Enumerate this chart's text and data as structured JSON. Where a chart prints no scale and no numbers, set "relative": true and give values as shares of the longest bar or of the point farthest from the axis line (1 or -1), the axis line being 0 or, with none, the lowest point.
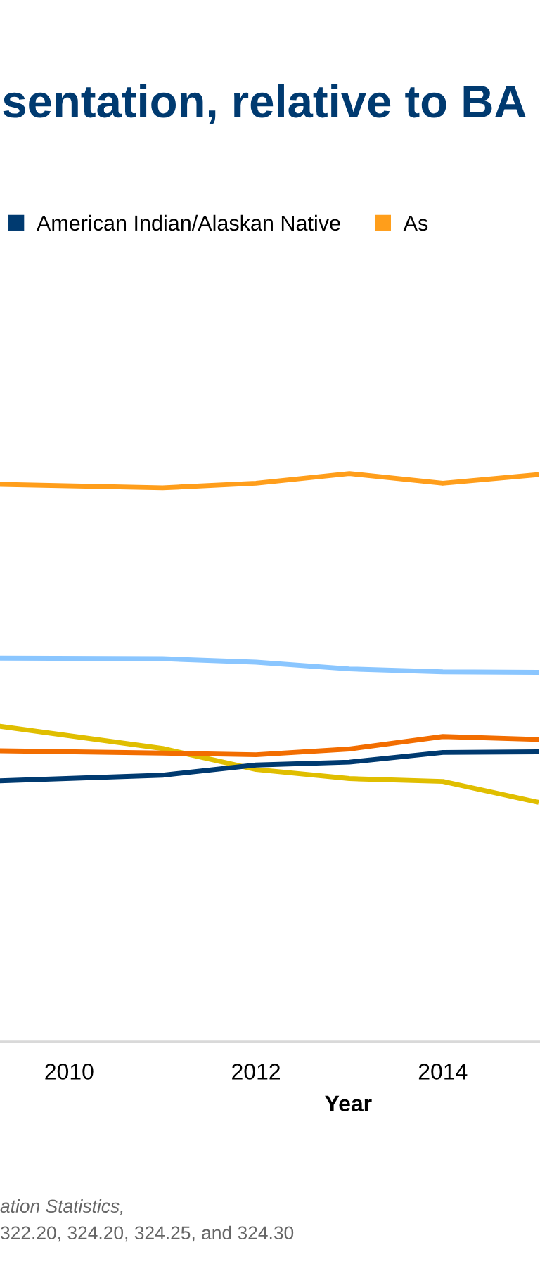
{
  "chart_data": {
    "type": "line",
    "title": "sentation, relative to BA",
    "xlabel": "Year",
    "relative": true,
    "x": [
      2009.26,
      2011,
      2012,
      2013,
      2014,
      2015
    ],
    "xlim": [
      2009.26,
      2015.04
    ],
    "xticks": [
      2010,
      2012,
      2014
    ],
    "series": [
      {
        "name": "As",
        "color": "#ff9e1b",
        "values": [
          0.981,
          0.975,
          0.983,
          1.0,
          0.983,
          0.998
        ]
      },
      {
        "color": "#8ac6ff",
        "values": [
          0.675,
          0.674,
          0.668,
          0.656,
          0.651,
          0.65
        ]
      },
      {
        "color": "#e0be00",
        "values": [
          0.555,
          0.516,
          0.479,
          0.463,
          0.458,
          0.422
        ]
      },
      {
        "color": "#f26d00",
        "values": [
          0.512,
          0.508,
          0.505,
          0.515,
          0.537,
          0.532
        ]
      },
      {
        "name": "American Indian/Alaskan Native",
        "color": "#003a70",
        "values": [
          0.459,
          0.469,
          0.487,
          0.492,
          0.509,
          0.51
        ]
      }
    ],
    "legend": "top",
    "marker": "none",
    "line_style": "solid",
    "annotations": [
      "ation Statistics,",
      "322.20, 324.20, 324.25, and 324.30"
    ]
  }
}
